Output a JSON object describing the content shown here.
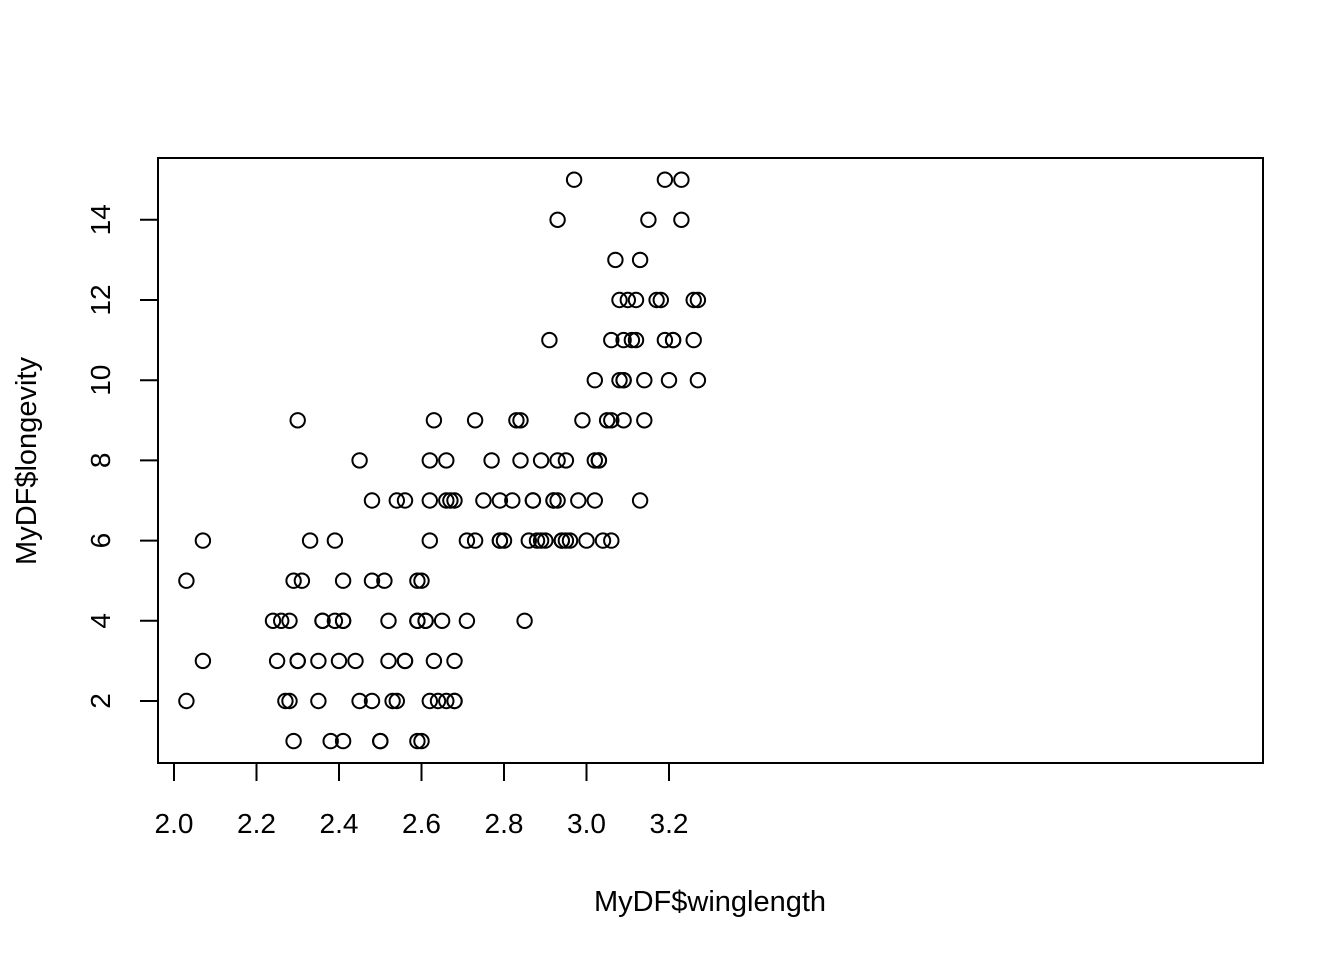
{
  "chart_data": {
    "type": "scatter",
    "xlabel": "MyDF$winglength",
    "ylabel": "MyDF$longevity",
    "xlim": [
      2.0,
      3.3
    ],
    "ylim": [
      0.5,
      15.6
    ],
    "xticks": [
      "2.0",
      "2.2",
      "2.4",
      "2.6",
      "2.8",
      "3.0",
      "3.2"
    ],
    "yticks": [
      "2",
      "4",
      "6",
      "8",
      "10",
      "12",
      "14"
    ],
    "grid": false,
    "marker": "open-circle",
    "point_color": "#000000",
    "points": [
      [
        2.03,
        5
      ],
      [
        2.03,
        2
      ],
      [
        2.07,
        6
      ],
      [
        2.07,
        3
      ],
      [
        2.24,
        4
      ],
      [
        2.25,
        3
      ],
      [
        2.26,
        4
      ],
      [
        2.27,
        2
      ],
      [
        2.28,
        2
      ],
      [
        2.28,
        4
      ],
      [
        2.29,
        5
      ],
      [
        2.29,
        1
      ],
      [
        2.3,
        9
      ],
      [
        2.3,
        3
      ],
      [
        2.3,
        3
      ],
      [
        2.31,
        5
      ],
      [
        2.33,
        6
      ],
      [
        2.35,
        3
      ],
      [
        2.35,
        2
      ],
      [
        2.36,
        4
      ],
      [
        2.36,
        4
      ],
      [
        2.38,
        1
      ],
      [
        2.39,
        6
      ],
      [
        2.39,
        4
      ],
      [
        2.4,
        3
      ],
      [
        2.41,
        5
      ],
      [
        2.41,
        4
      ],
      [
        2.41,
        4
      ],
      [
        2.41,
        1
      ],
      [
        2.44,
        3
      ],
      [
        2.45,
        8
      ],
      [
        2.45,
        2
      ],
      [
        2.48,
        7
      ],
      [
        2.48,
        5
      ],
      [
        2.48,
        2
      ],
      [
        2.5,
        1
      ],
      [
        2.5,
        1
      ],
      [
        2.51,
        5
      ],
      [
        2.52,
        4
      ],
      [
        2.52,
        3
      ],
      [
        2.53,
        2
      ],
      [
        2.54,
        7
      ],
      [
        2.54,
        2
      ],
      [
        2.56,
        7
      ],
      [
        2.56,
        3
      ],
      [
        2.56,
        3
      ],
      [
        2.59,
        5
      ],
      [
        2.59,
        4
      ],
      [
        2.59,
        4
      ],
      [
        2.59,
        1
      ],
      [
        2.6,
        5
      ],
      [
        2.6,
        1
      ],
      [
        2.61,
        4
      ],
      [
        2.61,
        4
      ],
      [
        2.62,
        8
      ],
      [
        2.62,
        7
      ],
      [
        2.62,
        6
      ],
      [
        2.62,
        2
      ],
      [
        2.63,
        9
      ],
      [
        2.63,
        3
      ],
      [
        2.64,
        2
      ],
      [
        2.65,
        4
      ],
      [
        2.66,
        8
      ],
      [
        2.66,
        7
      ],
      [
        2.66,
        2
      ],
      [
        2.67,
        7
      ],
      [
        2.68,
        7
      ],
      [
        2.68,
        3
      ],
      [
        2.68,
        2
      ],
      [
        2.68,
        2
      ],
      [
        2.71,
        6
      ],
      [
        2.71,
        4
      ],
      [
        2.73,
        9
      ],
      [
        2.73,
        6
      ],
      [
        2.75,
        7
      ],
      [
        2.77,
        8
      ],
      [
        2.79,
        7
      ],
      [
        2.79,
        6
      ],
      [
        2.79,
        6
      ],
      [
        2.8,
        6
      ],
      [
        2.82,
        7
      ],
      [
        2.83,
        9
      ],
      [
        2.84,
        9
      ],
      [
        2.84,
        8
      ],
      [
        2.85,
        4
      ],
      [
        2.86,
        6
      ],
      [
        2.87,
        7
      ],
      [
        2.87,
        7
      ],
      [
        2.88,
        6
      ],
      [
        2.89,
        8
      ],
      [
        2.89,
        6
      ],
      [
        2.9,
        6
      ],
      [
        2.91,
        11
      ],
      [
        2.92,
        7
      ],
      [
        2.92,
        7
      ],
      [
        2.93,
        14
      ],
      [
        2.93,
        8
      ],
      [
        2.93,
        7
      ],
      [
        2.94,
        6
      ],
      [
        2.94,
        6
      ],
      [
        2.95,
        8
      ],
      [
        2.95,
        6
      ],
      [
        2.96,
        6
      ],
      [
        2.97,
        15
      ],
      [
        2.98,
        7
      ],
      [
        2.99,
        9
      ],
      [
        3.0,
        6
      ],
      [
        3.02,
        10
      ],
      [
        3.02,
        8
      ],
      [
        3.02,
        7
      ],
      [
        3.03,
        8
      ],
      [
        3.03,
        8
      ],
      [
        3.04,
        6
      ],
      [
        3.05,
        9
      ],
      [
        3.06,
        11
      ],
      [
        3.06,
        9
      ],
      [
        3.06,
        6
      ],
      [
        3.07,
        13
      ],
      [
        3.08,
        12
      ],
      [
        3.08,
        10
      ],
      [
        3.09,
        11
      ],
      [
        3.09,
        10
      ],
      [
        3.09,
        10
      ],
      [
        3.09,
        9
      ],
      [
        3.1,
        12
      ],
      [
        3.11,
        11
      ],
      [
        3.12,
        12
      ],
      [
        3.12,
        11
      ],
      [
        3.13,
        13
      ],
      [
        3.13,
        7
      ],
      [
        3.14,
        10
      ],
      [
        3.14,
        9
      ],
      [
        3.15,
        14
      ],
      [
        3.17,
        12
      ],
      [
        3.18,
        12
      ],
      [
        3.19,
        15
      ],
      [
        3.19,
        11
      ],
      [
        3.2,
        10
      ],
      [
        3.21,
        11
      ],
      [
        3.21,
        11
      ],
      [
        3.23,
        15
      ],
      [
        3.23,
        14
      ],
      [
        3.26,
        12
      ],
      [
        3.26,
        11
      ],
      [
        3.27,
        12
      ],
      [
        3.27,
        10
      ]
    ]
  }
}
